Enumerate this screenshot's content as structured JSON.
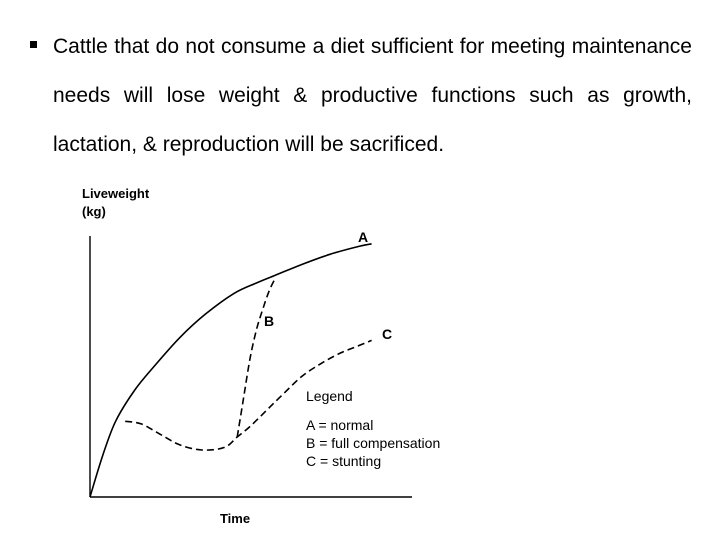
{
  "slide": {
    "bullet_text": "Cattle that do not consume a diet sufficient for meeting maintenance needs will lose weight & productive functions such as growth, lactation, & reproduction will be sacrificed."
  },
  "chart_data": {
    "type": "line",
    "title": "",
    "ylabel_lines": [
      "Liveweight",
      "(kg)"
    ],
    "xlabel": "Time",
    "xlim": [
      0,
      100
    ],
    "ylim": [
      0,
      100
    ],
    "grid": false,
    "legend": {
      "title": "Legend",
      "placement": "center-right",
      "entries": [
        "A = normal",
        "B = full compensation",
        "C = stunting"
      ]
    },
    "series": [
      {
        "name": "A",
        "style": "solid",
        "x": [
          0,
          4,
          8,
          14,
          20,
          28,
          36,
          45,
          52,
          58,
          66,
          75,
          84,
          88
        ],
        "y": [
          0,
          16,
          29,
          41,
          50,
          61,
          70,
          78,
          82,
          85,
          89,
          93,
          96,
          97
        ]
      },
      {
        "name": "B",
        "style": "dashed",
        "x": [
          46,
          48,
          50,
          52,
          54,
          56,
          58
        ],
        "y": [
          23,
          38,
          53,
          64,
          72,
          79,
          84
        ]
      },
      {
        "name": "C",
        "style": "dashed",
        "x": [
          11,
          16,
          22,
          28,
          35,
          42,
          46,
          50,
          55,
          60,
          66,
          72,
          78,
          84,
          88
        ],
        "y": [
          29,
          28,
          24,
          20,
          18,
          19,
          23,
          27,
          33,
          39,
          46,
          51,
          55,
          58,
          60
        ]
      }
    ]
  }
}
